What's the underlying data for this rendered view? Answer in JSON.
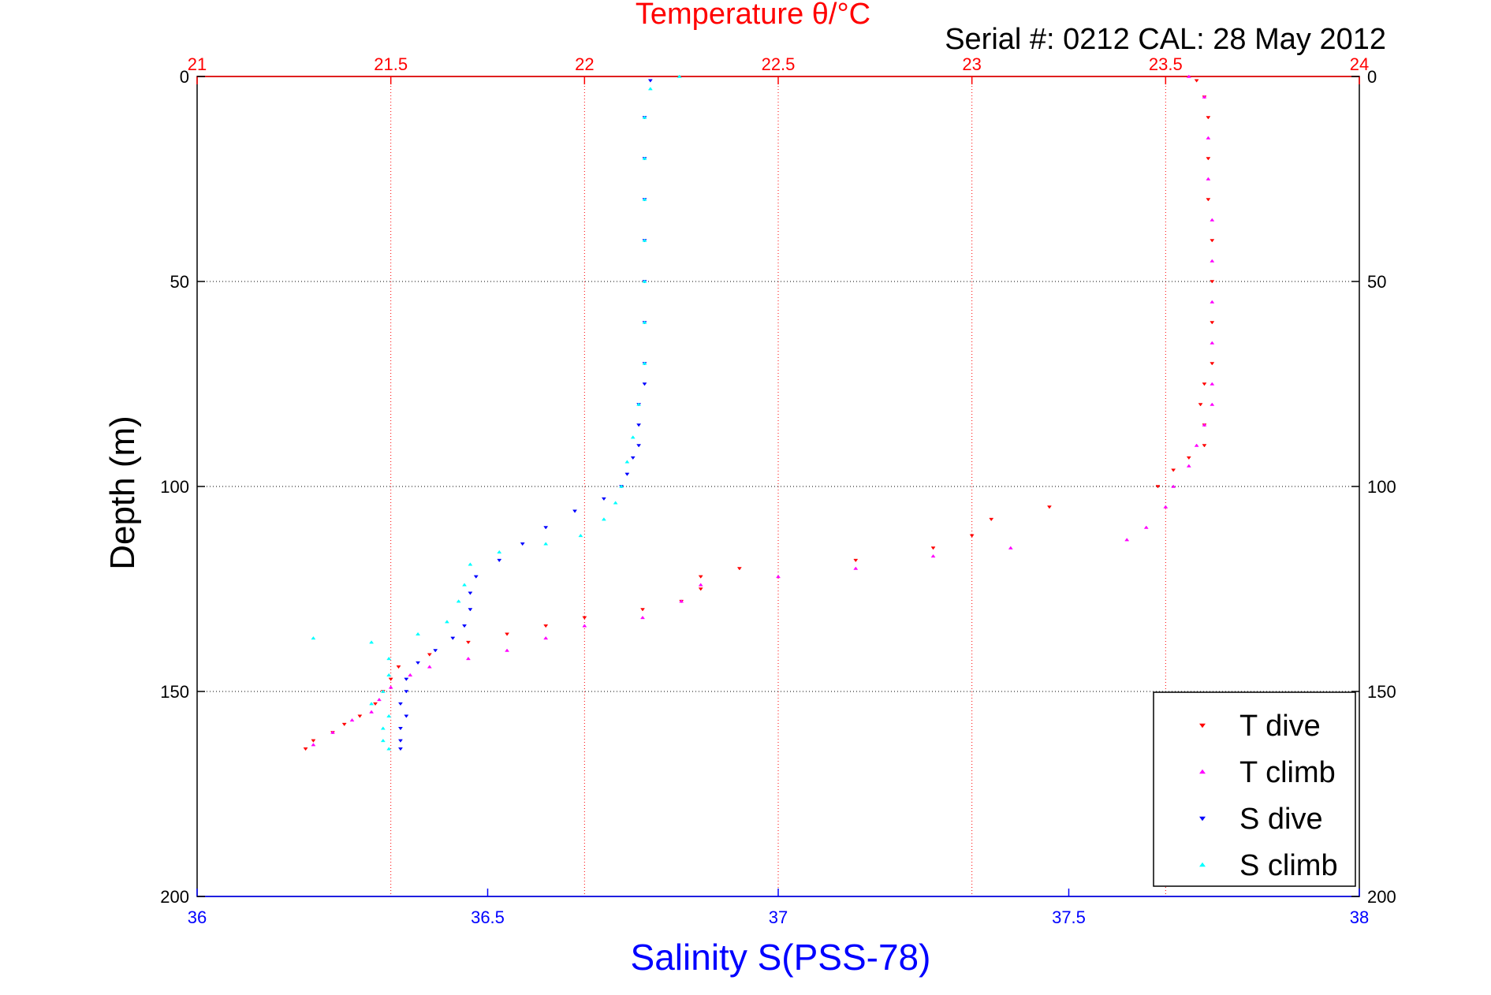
{
  "colors": {
    "t_dive": "#ff0000",
    "t_climb": "#ff00ff",
    "s_dive": "#0000ff",
    "s_climb": "#00ffff",
    "temp_axis": "#ff0000",
    "sal_axis": "#0000ff",
    "grid_temp": "#ff0000",
    "grid_depth": "#000000"
  },
  "chart_data": {
    "type": "scatter",
    "title": "Temperature θ/°C",
    "subtitle": "Serial #: 0212  CAL: 28 May 2012",
    "xlabel": "Salinity S(PSS-78)",
    "ylabel": "Depth (m)",
    "x_top": {
      "label": "Temperature θ/°C",
      "range": [
        21,
        24
      ],
      "ticks": [
        "21",
        "21.5",
        "22",
        "22.5",
        "23",
        "23.5",
        "24"
      ]
    },
    "x_bottom": {
      "label": "Salinity S(PSS-78)",
      "range": [
        36,
        38
      ],
      "ticks": [
        "36",
        "36.5",
        "37",
        "37.5",
        "38"
      ]
    },
    "y": {
      "label": "Depth (m)",
      "range": [
        0,
        200
      ],
      "reversed": true,
      "ticks": [
        "0",
        "50",
        "100",
        "150",
        "200"
      ]
    },
    "grid": true,
    "legend": {
      "placement": "bottom-right",
      "entries": [
        "T dive",
        "T climb",
        "S dive",
        "S climb"
      ]
    },
    "series": [
      {
        "name": "T dive",
        "axis": "temperature",
        "marker": "triangle-down",
        "points": [
          [
            23.58,
            1
          ],
          [
            23.6,
            5
          ],
          [
            23.61,
            10
          ],
          [
            23.61,
            20
          ],
          [
            23.61,
            30
          ],
          [
            23.62,
            40
          ],
          [
            23.62,
            50
          ],
          [
            23.62,
            60
          ],
          [
            23.62,
            70
          ],
          [
            23.6,
            75
          ],
          [
            23.59,
            80
          ],
          [
            23.6,
            85
          ],
          [
            23.6,
            90
          ],
          [
            23.56,
            93
          ],
          [
            23.52,
            96
          ],
          [
            23.48,
            100
          ],
          [
            23.2,
            105
          ],
          [
            23.05,
            108
          ],
          [
            23.0,
            112
          ],
          [
            22.9,
            115
          ],
          [
            22.7,
            118
          ],
          [
            22.4,
            120
          ],
          [
            22.3,
            122
          ],
          [
            22.3,
            125
          ],
          [
            22.25,
            128
          ],
          [
            22.15,
            130
          ],
          [
            22.0,
            132
          ],
          [
            21.9,
            134
          ],
          [
            21.8,
            136
          ],
          [
            21.7,
            138
          ],
          [
            21.6,
            141
          ],
          [
            21.52,
            144
          ],
          [
            21.5,
            147
          ],
          [
            21.48,
            150
          ],
          [
            21.46,
            153
          ],
          [
            21.42,
            156
          ],
          [
            21.38,
            158
          ],
          [
            21.35,
            160
          ],
          [
            21.3,
            162
          ],
          [
            21.28,
            164
          ]
        ]
      },
      {
        "name": "T climb",
        "axis": "temperature",
        "marker": "triangle-up",
        "points": [
          [
            23.56,
            0
          ],
          [
            23.6,
            5
          ],
          [
            23.61,
            15
          ],
          [
            23.61,
            25
          ],
          [
            23.62,
            35
          ],
          [
            23.62,
            45
          ],
          [
            23.62,
            55
          ],
          [
            23.62,
            65
          ],
          [
            23.62,
            75
          ],
          [
            23.62,
            80
          ],
          [
            23.6,
            85
          ],
          [
            23.58,
            90
          ],
          [
            23.56,
            95
          ],
          [
            23.52,
            100
          ],
          [
            23.5,
            105
          ],
          [
            23.45,
            110
          ],
          [
            23.4,
            113
          ],
          [
            23.1,
            115
          ],
          [
            22.9,
            117
          ],
          [
            22.7,
            120
          ],
          [
            22.5,
            122
          ],
          [
            22.3,
            124
          ],
          [
            22.25,
            128
          ],
          [
            22.15,
            132
          ],
          [
            22.0,
            134
          ],
          [
            21.9,
            137
          ],
          [
            21.8,
            140
          ],
          [
            21.7,
            142
          ],
          [
            21.6,
            144
          ],
          [
            21.55,
            146
          ],
          [
            21.5,
            149
          ],
          [
            21.47,
            152
          ],
          [
            21.45,
            155
          ],
          [
            21.4,
            157
          ],
          [
            21.35,
            160
          ],
          [
            21.3,
            163
          ]
        ]
      },
      {
        "name": "S dive",
        "axis": "salinity",
        "marker": "triangle-down",
        "points": [
          [
            36.78,
            1
          ],
          [
            36.77,
            10
          ],
          [
            36.77,
            20
          ],
          [
            36.77,
            30
          ],
          [
            36.77,
            40
          ],
          [
            36.77,
            50
          ],
          [
            36.77,
            60
          ],
          [
            36.77,
            70
          ],
          [
            36.77,
            75
          ],
          [
            36.76,
            80
          ],
          [
            36.76,
            85
          ],
          [
            36.76,
            90
          ],
          [
            36.75,
            93
          ],
          [
            36.74,
            97
          ],
          [
            36.73,
            100
          ],
          [
            36.7,
            103
          ],
          [
            36.65,
            106
          ],
          [
            36.6,
            110
          ],
          [
            36.56,
            114
          ],
          [
            36.52,
            118
          ],
          [
            36.48,
            122
          ],
          [
            36.47,
            126
          ],
          [
            36.47,
            130
          ],
          [
            36.46,
            134
          ],
          [
            36.44,
            137
          ],
          [
            36.41,
            140
          ],
          [
            36.38,
            143
          ],
          [
            36.36,
            147
          ],
          [
            36.36,
            150
          ],
          [
            36.35,
            153
          ],
          [
            36.36,
            156
          ],
          [
            36.35,
            159
          ],
          [
            36.35,
            162
          ],
          [
            36.35,
            164
          ]
        ]
      },
      {
        "name": "S climb",
        "axis": "salinity",
        "marker": "triangle-up",
        "points": [
          [
            36.83,
            0
          ],
          [
            36.78,
            3
          ],
          [
            36.77,
            10
          ],
          [
            36.77,
            20
          ],
          [
            36.77,
            30
          ],
          [
            36.77,
            40
          ],
          [
            36.77,
            50
          ],
          [
            36.77,
            60
          ],
          [
            36.77,
            70
          ],
          [
            36.76,
            80
          ],
          [
            36.75,
            88
          ],
          [
            36.74,
            94
          ],
          [
            36.73,
            100
          ],
          [
            36.72,
            104
          ],
          [
            36.7,
            108
          ],
          [
            36.66,
            112
          ],
          [
            36.6,
            114
          ],
          [
            36.52,
            116
          ],
          [
            36.47,
            119
          ],
          [
            36.46,
            124
          ],
          [
            36.45,
            128
          ],
          [
            36.43,
            133
          ],
          [
            36.38,
            136
          ],
          [
            36.3,
            138
          ],
          [
            36.2,
            137
          ],
          [
            36.33,
            142
          ],
          [
            36.33,
            146
          ],
          [
            36.32,
            150
          ],
          [
            36.3,
            153
          ],
          [
            36.33,
            156
          ],
          [
            36.32,
            159
          ],
          [
            36.32,
            162
          ],
          [
            36.33,
            164
          ]
        ]
      }
    ]
  }
}
